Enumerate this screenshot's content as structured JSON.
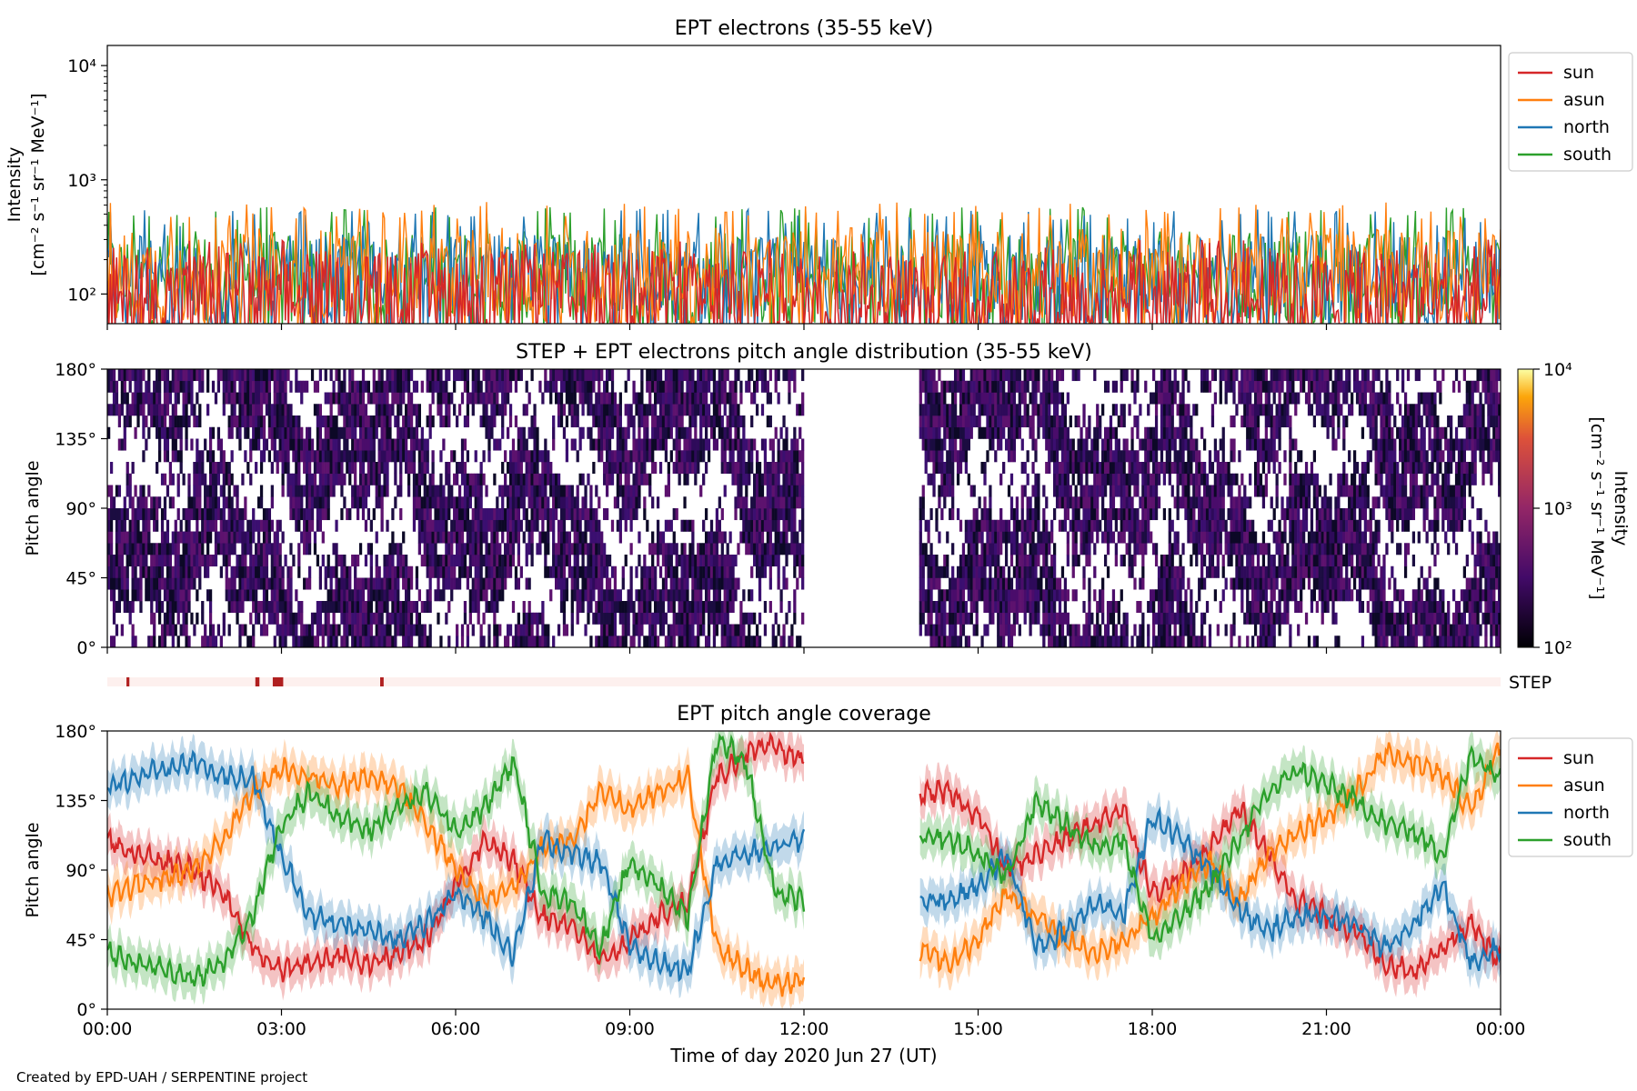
{
  "footer": "Created by EPD-UAH / SERPENTINE project",
  "colors": {
    "sun": "#d62728",
    "asun": "#ff7f0e",
    "north": "#1f77b4",
    "south": "#2ca02c",
    "step_band_bg": "#fdf0ee",
    "step_mark": "#b01f1f"
  },
  "chart_data": [
    {
      "id": "ept-electrons",
      "type": "line",
      "title": "EPT electrons (35-55 keV)",
      "ylabel_line1": "Intensity",
      "ylabel_line2": "[cm⁻² s⁻¹ sr⁻¹ MeV⁻¹]",
      "y_scale": "log",
      "ylim": [
        55,
        15000
      ],
      "yticks": [
        {
          "value": 100,
          "label": "10²"
        },
        {
          "value": 1000,
          "label": "10³"
        },
        {
          "value": 10000,
          "label": "10⁴"
        }
      ],
      "xlim_hours": [
        0,
        24
      ],
      "legend_position": "outside-right-top",
      "series": [
        {
          "name": "sun",
          "typical": 95,
          "peak": 300
        },
        {
          "name": "asun",
          "typical": 150,
          "peak": 640
        },
        {
          "name": "north",
          "typical": 130,
          "peak": 560
        },
        {
          "name": "south",
          "typical": 140,
          "peak": 580
        }
      ]
    },
    {
      "id": "pitch-angle-distribution",
      "type": "heatmap",
      "title": "STEP + EPT electrons pitch angle distribution (35-55 keV)",
      "ylabel": "Pitch angle",
      "ylim": [
        0,
        180
      ],
      "yticks": [
        {
          "value": 0,
          "label": "0°"
        },
        {
          "value": 45,
          "label": "45°"
        },
        {
          "value": 90,
          "label": "90°"
        },
        {
          "value": 135,
          "label": "135°"
        },
        {
          "value": 180,
          "label": "180°"
        }
      ],
      "xlim_hours": [
        0,
        24
      ],
      "data_gaps_hours": [
        [
          12.0,
          14.0
        ]
      ],
      "colorbar": {
        "label_line1": "Intensity",
        "label_line2": "[cm⁻² s⁻¹ sr⁻¹ MeV⁻¹]",
        "scale": "log",
        "range": [
          100,
          10000
        ],
        "ticks": [
          {
            "value": 100,
            "label": "10²"
          },
          {
            "value": 1000,
            "label": "10³"
          },
          {
            "value": 10000,
            "label": "10⁴"
          }
        ]
      }
    },
    {
      "id": "step-coverage",
      "type": "bar",
      "label": "STEP",
      "xlim_hours": [
        0,
        24
      ],
      "marks_hours": [
        [
          0.33,
          0.38
        ],
        [
          2.55,
          2.62
        ],
        [
          2.85,
          3.03
        ],
        [
          4.7,
          4.76
        ]
      ]
    },
    {
      "id": "ept-pitch-angle-coverage",
      "type": "line",
      "title": "EPT pitch angle coverage",
      "ylabel": "Pitch angle",
      "xlabel": "Time of day 2020 Jun 27 (UT)",
      "ylim": [
        0,
        180
      ],
      "yticks": [
        {
          "value": 0,
          "label": "0°"
        },
        {
          "value": 45,
          "label": "45°"
        },
        {
          "value": 90,
          "label": "90°"
        },
        {
          "value": 135,
          "label": "135°"
        },
        {
          "value": 180,
          "label": "180°"
        }
      ],
      "xlim_hours": [
        0,
        24
      ],
      "xticks": [
        {
          "value": 0,
          "label": "00:00"
        },
        {
          "value": 3,
          "label": "03:00"
        },
        {
          "value": 6,
          "label": "06:00"
        },
        {
          "value": 9,
          "label": "09:00"
        },
        {
          "value": 12,
          "label": "12:00"
        },
        {
          "value": 15,
          "label": "15:00"
        },
        {
          "value": 18,
          "label": "18:00"
        },
        {
          "value": 21,
          "label": "21:00"
        },
        {
          "value": 24,
          "label": "00:00"
        }
      ],
      "data_gaps_hours": [
        [
          12.0,
          14.0
        ]
      ],
      "legend_position": "outside-right-top",
      "series": [
        {
          "name": "sun",
          "x": [
            0,
            0.5,
            1,
            1.5,
            2,
            2.5,
            3,
            3.5,
            4,
            4.5,
            5,
            5.5,
            6,
            6.5,
            7,
            7.5,
            8,
            8.5,
            9,
            9.5,
            10,
            10.5,
            11,
            11.5,
            12,
            14,
            14.5,
            15,
            15.5,
            16,
            16.5,
            17,
            17.5,
            18,
            18.5,
            19,
            19.5,
            20,
            20.5,
            21,
            21.5,
            22,
            22.5,
            23,
            23.5,
            24
          ],
          "y": [
            108,
            100,
            95,
            90,
            75,
            40,
            25,
            30,
            35,
            30,
            35,
            45,
            80,
            110,
            95,
            60,
            55,
            30,
            45,
            60,
            70,
            150,
            165,
            170,
            160,
            140,
            140,
            125,
            90,
            100,
            110,
            120,
            130,
            75,
            85,
            105,
            130,
            100,
            70,
            60,
            50,
            30,
            25,
            40,
            55,
            30
          ]
        },
        {
          "name": "asun",
          "x": [
            0,
            0.5,
            1,
            1.5,
            2,
            2.5,
            3,
            3.5,
            4,
            4.5,
            5,
            5.5,
            6,
            6.5,
            7,
            7.5,
            8,
            8.5,
            9,
            9.5,
            10,
            10.5,
            11,
            11.5,
            12,
            14,
            14.5,
            15,
            15.5,
            16,
            16.5,
            17,
            17.5,
            18,
            18.5,
            19,
            19.5,
            20,
            20.5,
            21,
            21.5,
            22,
            22.5,
            23,
            23.5,
            24
          ],
          "y": [
            72,
            80,
            85,
            90,
            110,
            140,
            155,
            150,
            145,
            150,
            145,
            120,
            90,
            70,
            80,
            105,
            110,
            140,
            130,
            140,
            150,
            40,
            25,
            15,
            20,
            40,
            30,
            45,
            75,
            60,
            45,
            35,
            45,
            60,
            80,
            95,
            70,
            100,
            115,
            125,
            140,
            165,
            160,
            150,
            130,
            170
          ]
        },
        {
          "name": "north",
          "x": [
            0,
            0.5,
            1,
            1.5,
            2,
            2.5,
            3,
            3.5,
            4,
            4.5,
            5,
            5.5,
            6,
            6.5,
            7,
            7.5,
            8,
            8.5,
            9,
            9.5,
            10,
            10.5,
            11,
            11.5,
            12,
            14,
            14.5,
            15,
            15.5,
            16,
            16.5,
            17,
            17.5,
            18,
            18.5,
            19,
            19.5,
            20,
            20.5,
            21,
            21.5,
            22,
            22.5,
            23,
            23.5,
            24
          ],
          "y": [
            145,
            150,
            155,
            160,
            150,
            150,
            100,
            60,
            55,
            50,
            45,
            55,
            75,
            60,
            35,
            110,
            100,
            95,
            40,
            30,
            25,
            95,
            100,
            105,
            110,
            70,
            70,
            80,
            100,
            40,
            50,
            70,
            60,
            125,
            110,
            90,
            65,
            50,
            60,
            60,
            55,
            40,
            55,
            80,
            30,
            40
          ]
        },
        {
          "name": "south",
          "x": [
            0,
            0.5,
            1,
            1.5,
            2,
            2.5,
            3,
            3.5,
            4,
            4.5,
            5,
            5.5,
            6,
            6.5,
            7,
            7.5,
            8,
            8.5,
            9,
            9.5,
            10,
            10.5,
            11,
            11.5,
            12,
            14,
            14.5,
            15,
            15.5,
            16,
            16.5,
            17,
            17.5,
            18,
            18.5,
            19,
            19.5,
            20,
            20.5,
            21,
            21.5,
            22,
            22.5,
            23,
            23.5,
            24
          ],
          "y": [
            36,
            30,
            25,
            20,
            30,
            60,
            120,
            140,
            125,
            115,
            130,
            140,
            115,
            130,
            160,
            75,
            70,
            40,
            95,
            80,
            60,
            175,
            160,
            75,
            70,
            110,
            110,
            100,
            85,
            135,
            120,
            105,
            110,
            45,
            60,
            80,
            110,
            140,
            155,
            145,
            135,
            120,
            115,
            100,
            165,
            150
          ]
        }
      ]
    }
  ]
}
